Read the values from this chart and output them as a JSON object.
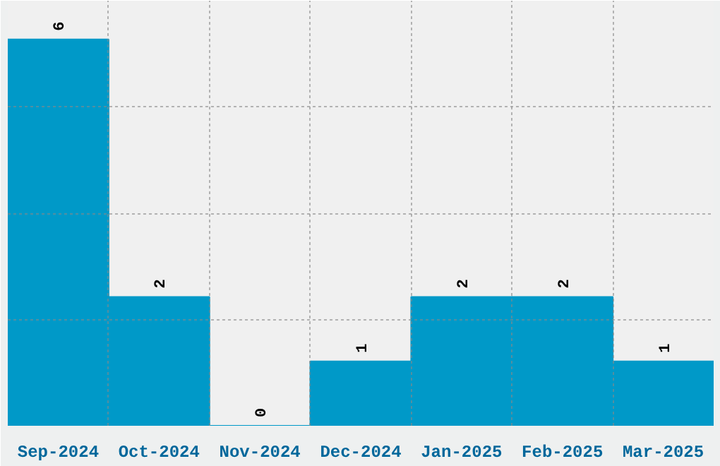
{
  "chart_data": {
    "type": "bar",
    "categories": [
      "Sep-2024",
      "Oct-2024",
      "Nov-2024",
      "Dec-2024",
      "Jan-2025",
      "Feb-2025",
      "Mar-2025"
    ],
    "values": [
      6,
      2,
      0,
      1,
      2,
      2,
      1
    ],
    "color": "#0099c8",
    "ylim": [
      0,
      6.6
    ],
    "yticks": [
      {
        "value": 1.65,
        "label": null
      },
      {
        "value": 3.3,
        "label": null
      },
      {
        "value": 4.95,
        "label": null
      }
    ],
    "grid": true,
    "tick_labels": "x",
    "data_labels": true
  }
}
